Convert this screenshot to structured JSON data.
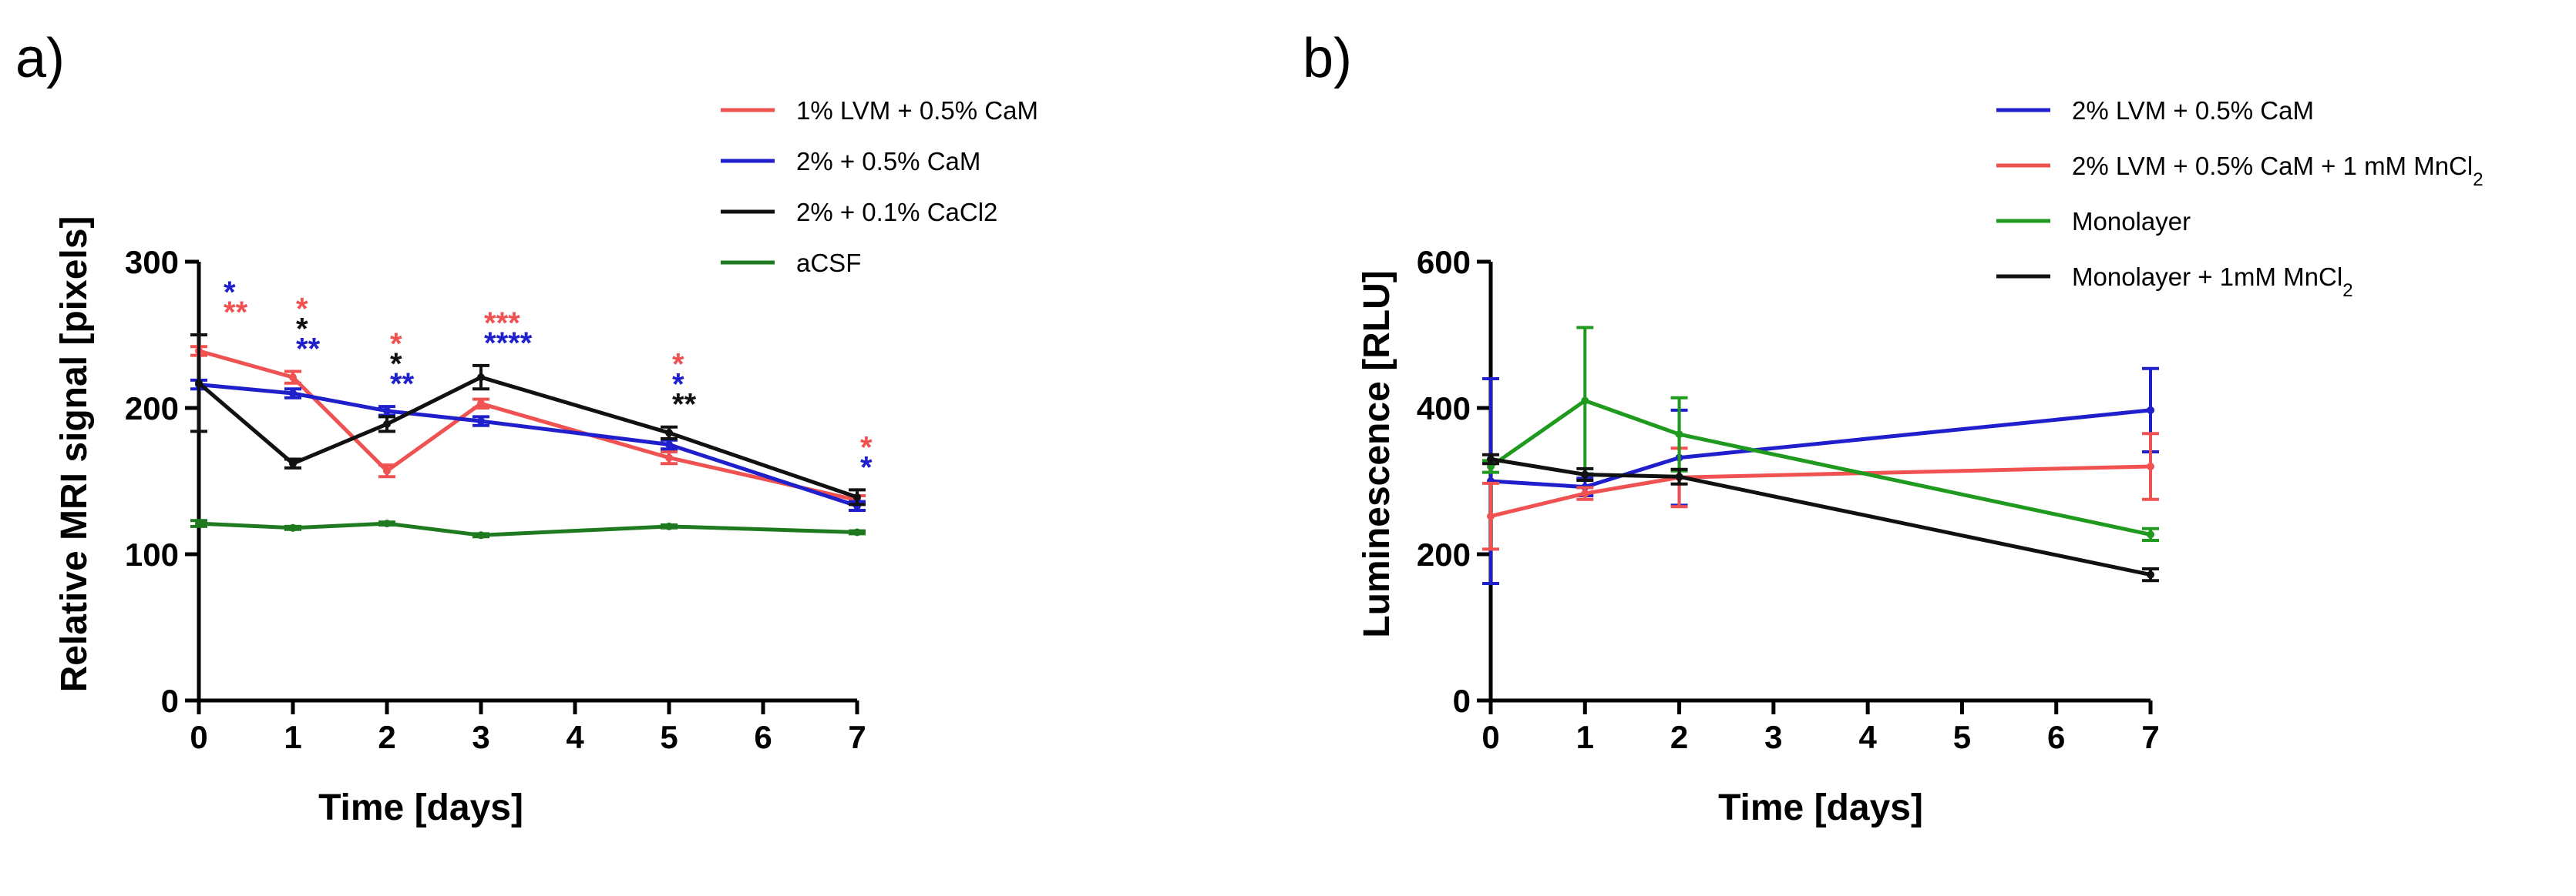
{
  "chart_data": [
    {
      "panel": "a)",
      "type": "line",
      "xlabel": "Time [days]",
      "ylabel": "Relative MRI signal [pixels]",
      "xlim": [
        0,
        7
      ],
      "ylim": [
        0,
        300
      ],
      "xticks": [
        0,
        1,
        2,
        3,
        4,
        5,
        6,
        7
      ],
      "yticks": [
        0,
        100,
        200,
        300
      ],
      "legend_position": "top-right",
      "series": [
        {
          "name": "1% LVM + 0.5% CaM",
          "color": "#f05252",
          "x": [
            0,
            1,
            2,
            3,
            5,
            7
          ],
          "y": [
            239,
            221,
            157,
            203,
            166,
            137
          ],
          "err": [
            3,
            4,
            4,
            3,
            4,
            3
          ]
        },
        {
          "name": "2% + 0.5% CaM",
          "color": "#1f1fcc",
          "x": [
            0,
            1,
            2,
            3,
            5,
            7
          ],
          "y": [
            216,
            210,
            198,
            191,
            175,
            133
          ],
          "err": [
            3,
            3,
            3,
            3,
            3,
            3
          ]
        },
        {
          "name": "2% + 0.1% CaCl2",
          "color": "#111111",
          "x": [
            0,
            1,
            2,
            3,
            5,
            7
          ],
          "y": [
            217,
            162,
            189,
            221,
            183,
            139
          ],
          "err": [
            33,
            3,
            5,
            8,
            4,
            5
          ]
        },
        {
          "name": "aCSF",
          "color": "#1f7a1f",
          "x": [
            0,
            1,
            2,
            3,
            5,
            7
          ],
          "y": [
            121,
            118,
            121,
            113,
            119,
            115
          ],
          "err": [
            2,
            1,
            1,
            1,
            1,
            1
          ]
        }
      ],
      "annotations": [
        {
          "x": 0,
          "lines": [
            {
              "text": "*",
              "color": "#1f1fcc"
            },
            {
              "text": "**",
              "color": "#f05252"
            }
          ]
        },
        {
          "x": 1,
          "lines": [
            {
              "text": "*",
              "color": "#f05252"
            },
            {
              "text": "*",
              "color": "#111111"
            },
            {
              "text": "**",
              "color": "#1f1fcc"
            }
          ]
        },
        {
          "x": 2,
          "lines": [
            {
              "text": "*",
              "color": "#f05252"
            },
            {
              "text": "*",
              "color": "#111111"
            },
            {
              "text": "**",
              "color": "#1f1fcc"
            }
          ]
        },
        {
          "x": 3,
          "lines": [
            {
              "text": "***",
              "color": "#f05252"
            },
            {
              "text": "****",
              "color": "#1f1fcc"
            }
          ]
        },
        {
          "x": 5,
          "lines": [
            {
              "text": "*",
              "color": "#f05252"
            },
            {
              "text": "*",
              "color": "#1f1fcc"
            },
            {
              "text": "**",
              "color": "#111111"
            }
          ]
        },
        {
          "x": 7,
          "lines": [
            {
              "text": "*",
              "color": "#f05252"
            },
            {
              "text": "*",
              "color": "#1f1fcc"
            }
          ]
        }
      ]
    },
    {
      "panel": "b)",
      "type": "line",
      "xlabel": "Time [days]",
      "ylabel": "Luminescence [RLU]",
      "xlim": [
        0,
        7
      ],
      "ylim": [
        0,
        600
      ],
      "xticks": [
        0,
        1,
        2,
        3,
        4,
        5,
        6,
        7
      ],
      "yticks": [
        0,
        200,
        400,
        600
      ],
      "legend_position": "top-right",
      "series": [
        {
          "name": "2% LVM + 0.5% CaM",
          "sub": "",
          "color": "#1f1fcc",
          "x": [
            0,
            1,
            2,
            7
          ],
          "y": [
            300,
            292,
            332,
            397
          ],
          "err": [
            140,
            12,
            65,
            57
          ]
        },
        {
          "name": "2% LVM + 0.5% CaM + 1 mM MnCl",
          "sub": "2",
          "color": "#f05252",
          "x": [
            0,
            1,
            2,
            7
          ],
          "y": [
            252,
            283,
            305,
            320
          ],
          "err": [
            45,
            8,
            40,
            45
          ]
        },
        {
          "name": "Monolayer",
          "sub": "",
          "color": "#1f9a1f",
          "x": [
            0,
            1,
            2,
            7
          ],
          "y": [
            320,
            410,
            364,
            227
          ],
          "err": [
            8,
            100,
            50,
            8
          ]
        },
        {
          "name": "Monolayer + 1mM MnCl",
          "sub": "2",
          "color": "#111111",
          "x": [
            0,
            1,
            2,
            7
          ],
          "y": [
            330,
            309,
            306,
            172
          ],
          "err": [
            6,
            8,
            10,
            8
          ]
        }
      ]
    }
  ]
}
